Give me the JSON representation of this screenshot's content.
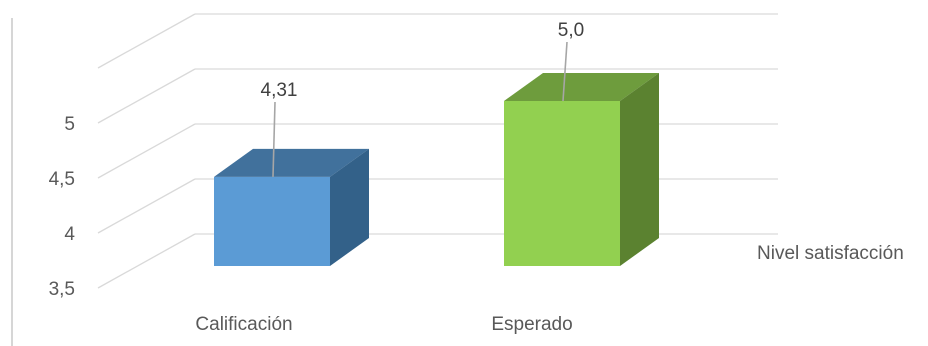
{
  "chart_data": {
    "type": "bar",
    "style": "3d-column",
    "categories": [
      "Calificación",
      "Esperado"
    ],
    "series": [
      {
        "name": "Nivel satisfacción",
        "values": [
          4.31,
          5.0
        ]
      }
    ],
    "data_labels": [
      "4,31",
      "5,0"
    ],
    "y_ticks": [
      "3,5",
      "4",
      "4,5",
      "5"
    ],
    "ylim": [
      3.5,
      5.5
    ],
    "grid": true,
    "colors": {
      "Calificación": {
        "front": "#5b9bd5",
        "top": "#41719c",
        "side": "#336189"
      },
      "Esperado": {
        "front": "#92d050",
        "top": "#6e9c3d",
        "side": "#5b8230"
      },
      "gridline": "#d9d9d9",
      "axis": "#bfbfbf",
      "leader": "#a6a6a6"
    }
  }
}
